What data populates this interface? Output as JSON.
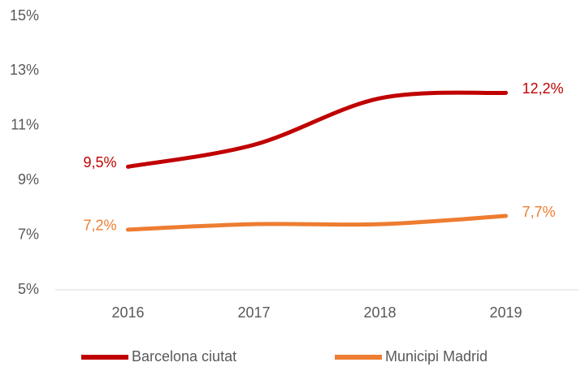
{
  "chart_data": {
    "type": "line",
    "categories": [
      "2016",
      "2017",
      "2018",
      "2019"
    ],
    "series": [
      {
        "name": "Barcelona ciutat",
        "color": "#c00000",
        "values": [
          9.5,
          10.3,
          12.0,
          12.2
        ],
        "value_labels": [
          "9,5%",
          null,
          null,
          "12,2%"
        ]
      },
      {
        "name": "Municipi Madrid",
        "color": "#ed7d31",
        "values": [
          7.2,
          7.4,
          7.4,
          7.7
        ],
        "value_labels": [
          "7,2%",
          null,
          null,
          "7,7%"
        ]
      }
    ],
    "ylim": [
      5,
      15
    ],
    "yticks": [
      {
        "value": 5,
        "label": "5%"
      },
      {
        "value": 7,
        "label": "7%"
      },
      {
        "value": 9,
        "label": "9%"
      },
      {
        "value": 11,
        "label": "11%"
      },
      {
        "value": 13,
        "label": "13%"
      },
      {
        "value": 15,
        "label": "15%"
      }
    ],
    "grid": false,
    "legend": "bottom"
  }
}
